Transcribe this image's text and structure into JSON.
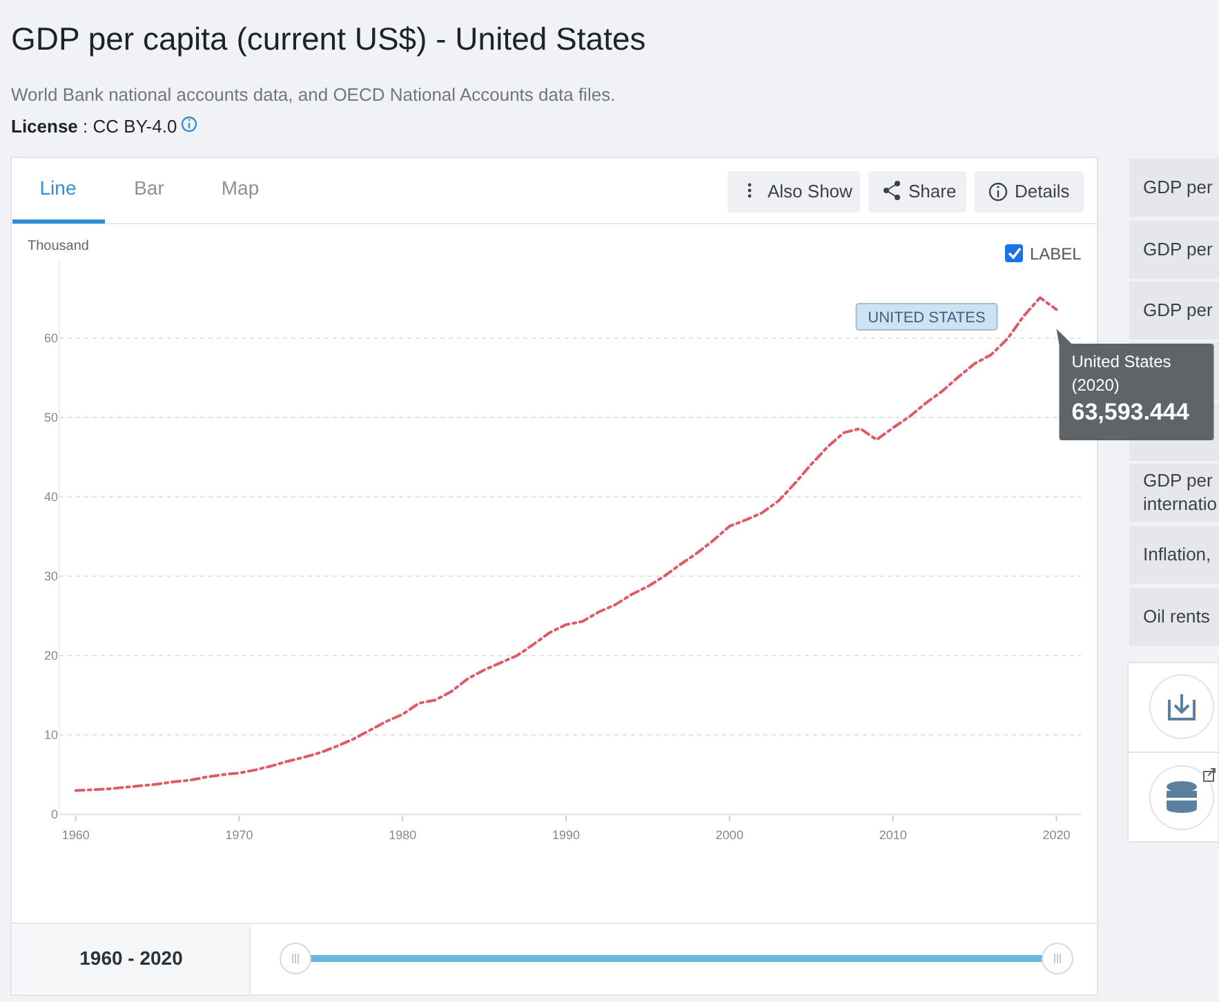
{
  "chart_data": {
    "type": "line",
    "title": "GDP per capita (current US$) - United States",
    "subtitle": "World Bank national accounts data, and OECD National Accounts data files.",
    "ylabel": "Thousand",
    "x": [
      1960,
      1961,
      1962,
      1963,
      1964,
      1965,
      1966,
      1967,
      1968,
      1969,
      1970,
      1971,
      1972,
      1973,
      1974,
      1975,
      1976,
      1977,
      1978,
      1979,
      1980,
      1981,
      1982,
      1983,
      1984,
      1985,
      1986,
      1987,
      1988,
      1989,
      1990,
      1991,
      1992,
      1993,
      1994,
      1995,
      1996,
      1997,
      1998,
      1999,
      2000,
      2001,
      2002,
      2003,
      2004,
      2005,
      2006,
      2007,
      2008,
      2009,
      2010,
      2011,
      2012,
      2013,
      2014,
      2015,
      2016,
      2017,
      2018,
      2019,
      2020
    ],
    "series": [
      {
        "name": "UNITED STATES",
        "color": "#e05a65",
        "values": [
          3.0,
          3.1,
          3.2,
          3.4,
          3.6,
          3.8,
          4.1,
          4.3,
          4.7,
          5.0,
          5.2,
          5.6,
          6.1,
          6.7,
          7.2,
          7.8,
          8.6,
          9.5,
          10.6,
          11.7,
          12.6,
          14.0,
          14.4,
          15.5,
          17.1,
          18.2,
          19.1,
          20.0,
          21.4,
          22.9,
          23.9,
          24.3,
          25.5,
          26.4,
          27.7,
          28.7,
          30.0,
          31.5,
          32.9,
          34.5,
          36.3,
          37.1,
          38.0,
          39.5,
          41.7,
          44.1,
          46.3,
          48.1,
          48.6,
          47.2,
          48.7,
          50.1,
          51.8,
          53.3,
          55.1,
          56.8,
          57.9,
          59.9,
          62.8,
          65.1,
          63.6
        ]
      }
    ],
    "xlim": [
      1959,
      2021.5
    ],
    "ylim": [
      0,
      70
    ],
    "xticks": [
      1960,
      1970,
      1980,
      1990,
      2000,
      2010,
      2020
    ],
    "yticks": [
      0,
      10,
      20,
      30,
      40,
      50,
      60
    ],
    "grid": "y",
    "legend": false,
    "marker": "none",
    "line_style": "dashed",
    "annotations": [
      "License : CC BY-4.0",
      "Line",
      "Bar",
      "Map",
      "Also Show",
      "Share",
      "Details",
      "LABEL",
      "GDP per",
      "GDP per",
      "GDP per",
      "GDP per\ninternatio",
      "Inflation,",
      "Oil rents",
      "1960 - 2020",
      {
        "text": "United States\n(2020)\n63,593.444",
        "x": 2020,
        "y": 63.6
      }
    ]
  }
}
